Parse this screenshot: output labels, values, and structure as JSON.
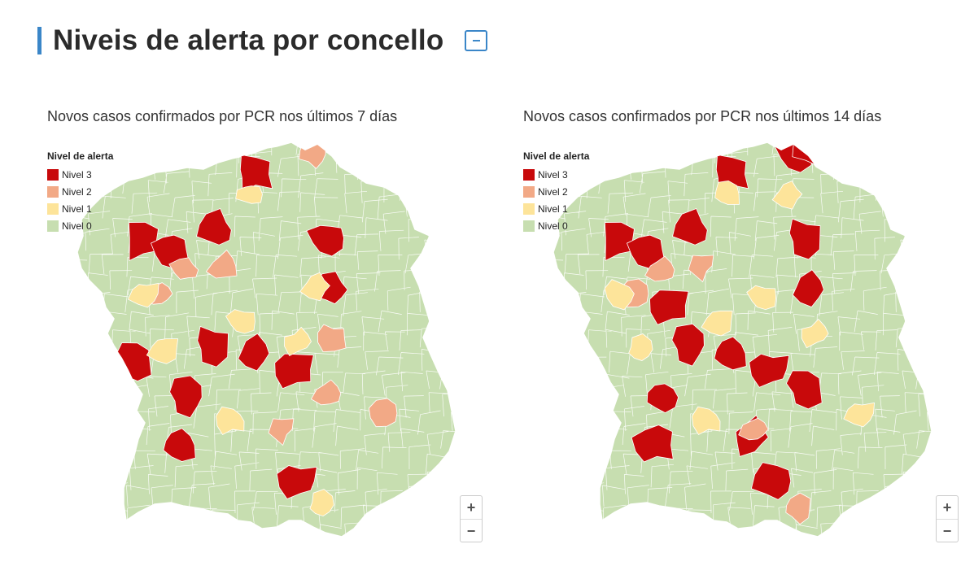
{
  "header": {
    "title": "Niveis de alerta por concello",
    "collapse_label": "−"
  },
  "colors": {
    "accent": "#3a86c8",
    "nivel_3": "#c8090b",
    "nivel_2": "#f2a986",
    "nivel_1": "#fde49a",
    "nivel_0": "#c7deb0"
  },
  "legend": {
    "title": "Nivel de alerta",
    "items": [
      {
        "label": "Nivel 3",
        "level": 3
      },
      {
        "label": "Nivel 2",
        "level": 2
      },
      {
        "label": "Nivel 1",
        "level": 1
      },
      {
        "label": "Nivel 0",
        "level": 0
      }
    ]
  },
  "zoom": {
    "in": "+",
    "out": "−"
  },
  "maps": [
    {
      "subtitle": "Novos casos confirmados por PCR nos últimos 7 días",
      "regions": [
        {
          "level": 3,
          "at": [
            0.16,
            0.25
          ]
        },
        {
          "level": 3,
          "at": [
            0.24,
            0.27
          ]
        },
        {
          "level": 3,
          "at": [
            0.36,
            0.22
          ]
        },
        {
          "level": 3,
          "at": [
            0.46,
            0.08
          ]
        },
        {
          "level": 3,
          "at": [
            0.66,
            0.24
          ]
        },
        {
          "level": 3,
          "at": [
            0.67,
            0.37
          ]
        },
        {
          "level": 3,
          "at": [
            0.35,
            0.51
          ]
        },
        {
          "level": 3,
          "at": [
            0.46,
            0.53
          ]
        },
        {
          "level": 3,
          "at": [
            0.57,
            0.57
          ]
        },
        {
          "level": 3,
          "at": [
            0.28,
            0.64
          ]
        },
        {
          "level": 3,
          "at": [
            0.26,
            0.76
          ]
        },
        {
          "level": 3,
          "at": [
            0.58,
            0.85
          ]
        },
        {
          "level": 3,
          "at": [
            0.14,
            0.55
          ]
        },
        {
          "level": 2,
          "at": [
            0.62,
            0.03
          ]
        },
        {
          "level": 2,
          "at": [
            0.38,
            0.31
          ]
        },
        {
          "level": 2,
          "at": [
            0.28,
            0.32
          ]
        },
        {
          "level": 2,
          "at": [
            0.67,
            0.49
          ]
        },
        {
          "level": 2,
          "at": [
            0.66,
            0.63
          ]
        },
        {
          "level": 2,
          "at": [
            0.53,
            0.72
          ]
        },
        {
          "level": 2,
          "at": [
            0.81,
            0.68
          ]
        },
        {
          "level": 2,
          "at": [
            0.21,
            0.38
          ]
        },
        {
          "level": 1,
          "at": [
            0.45,
            0.13
          ]
        },
        {
          "level": 1,
          "at": [
            0.63,
            0.36
          ]
        },
        {
          "level": 1,
          "at": [
            0.43,
            0.45
          ]
        },
        {
          "level": 1,
          "at": [
            0.58,
            0.5
          ]
        },
        {
          "level": 1,
          "at": [
            0.22,
            0.52
          ]
        },
        {
          "level": 1,
          "at": [
            0.64,
            0.91
          ]
        },
        {
          "level": 1,
          "at": [
            0.4,
            0.7
          ]
        },
        {
          "level": 1,
          "at": [
            0.17,
            0.38
          ]
        }
      ]
    },
    {
      "subtitle": "Novos casos confirmados por PCR nos últimos 14 días",
      "regions": [
        {
          "level": 3,
          "at": [
            0.16,
            0.25
          ]
        },
        {
          "level": 3,
          "at": [
            0.24,
            0.27
          ]
        },
        {
          "level": 3,
          "at": [
            0.36,
            0.22
          ]
        },
        {
          "level": 3,
          "at": [
            0.46,
            0.08
          ]
        },
        {
          "level": 3,
          "at": [
            0.64,
            0.03
          ]
        },
        {
          "level": 3,
          "at": [
            0.68,
            0.02
          ]
        },
        {
          "level": 3,
          "at": [
            0.66,
            0.24
          ]
        },
        {
          "level": 3,
          "at": [
            0.67,
            0.37
          ]
        },
        {
          "level": 3,
          "at": [
            0.3,
            0.41
          ]
        },
        {
          "level": 3,
          "at": [
            0.35,
            0.51
          ]
        },
        {
          "level": 3,
          "at": [
            0.46,
            0.53
          ]
        },
        {
          "level": 3,
          "at": [
            0.57,
            0.57
          ]
        },
        {
          "level": 3,
          "at": [
            0.66,
            0.62
          ]
        },
        {
          "level": 3,
          "at": [
            0.28,
            0.64
          ]
        },
        {
          "level": 3,
          "at": [
            0.26,
            0.76
          ]
        },
        {
          "level": 3,
          "at": [
            0.58,
            0.85
          ]
        },
        {
          "level": 3,
          "at": [
            0.52,
            0.74
          ]
        },
        {
          "level": 2,
          "at": [
            0.28,
            0.32
          ]
        },
        {
          "level": 2,
          "at": [
            0.38,
            0.31
          ]
        },
        {
          "level": 2,
          "at": [
            0.21,
            0.38
          ]
        },
        {
          "level": 2,
          "at": [
            0.53,
            0.72
          ]
        },
        {
          "level": 2,
          "at": [
            0.64,
            0.92
          ]
        },
        {
          "level": 1,
          "at": [
            0.62,
            0.13
          ]
        },
        {
          "level": 1,
          "at": [
            0.55,
            0.39
          ]
        },
        {
          "level": 1,
          "at": [
            0.69,
            0.48
          ]
        },
        {
          "level": 1,
          "at": [
            0.43,
            0.45
          ]
        },
        {
          "level": 1,
          "at": [
            0.22,
            0.52
          ]
        },
        {
          "level": 1,
          "at": [
            0.4,
            0.7
          ]
        },
        {
          "level": 1,
          "at": [
            0.81,
            0.68
          ]
        },
        {
          "level": 1,
          "at": [
            0.45,
            0.13
          ]
        },
        {
          "level": 1,
          "at": [
            0.17,
            0.38
          ]
        }
      ]
    }
  ]
}
